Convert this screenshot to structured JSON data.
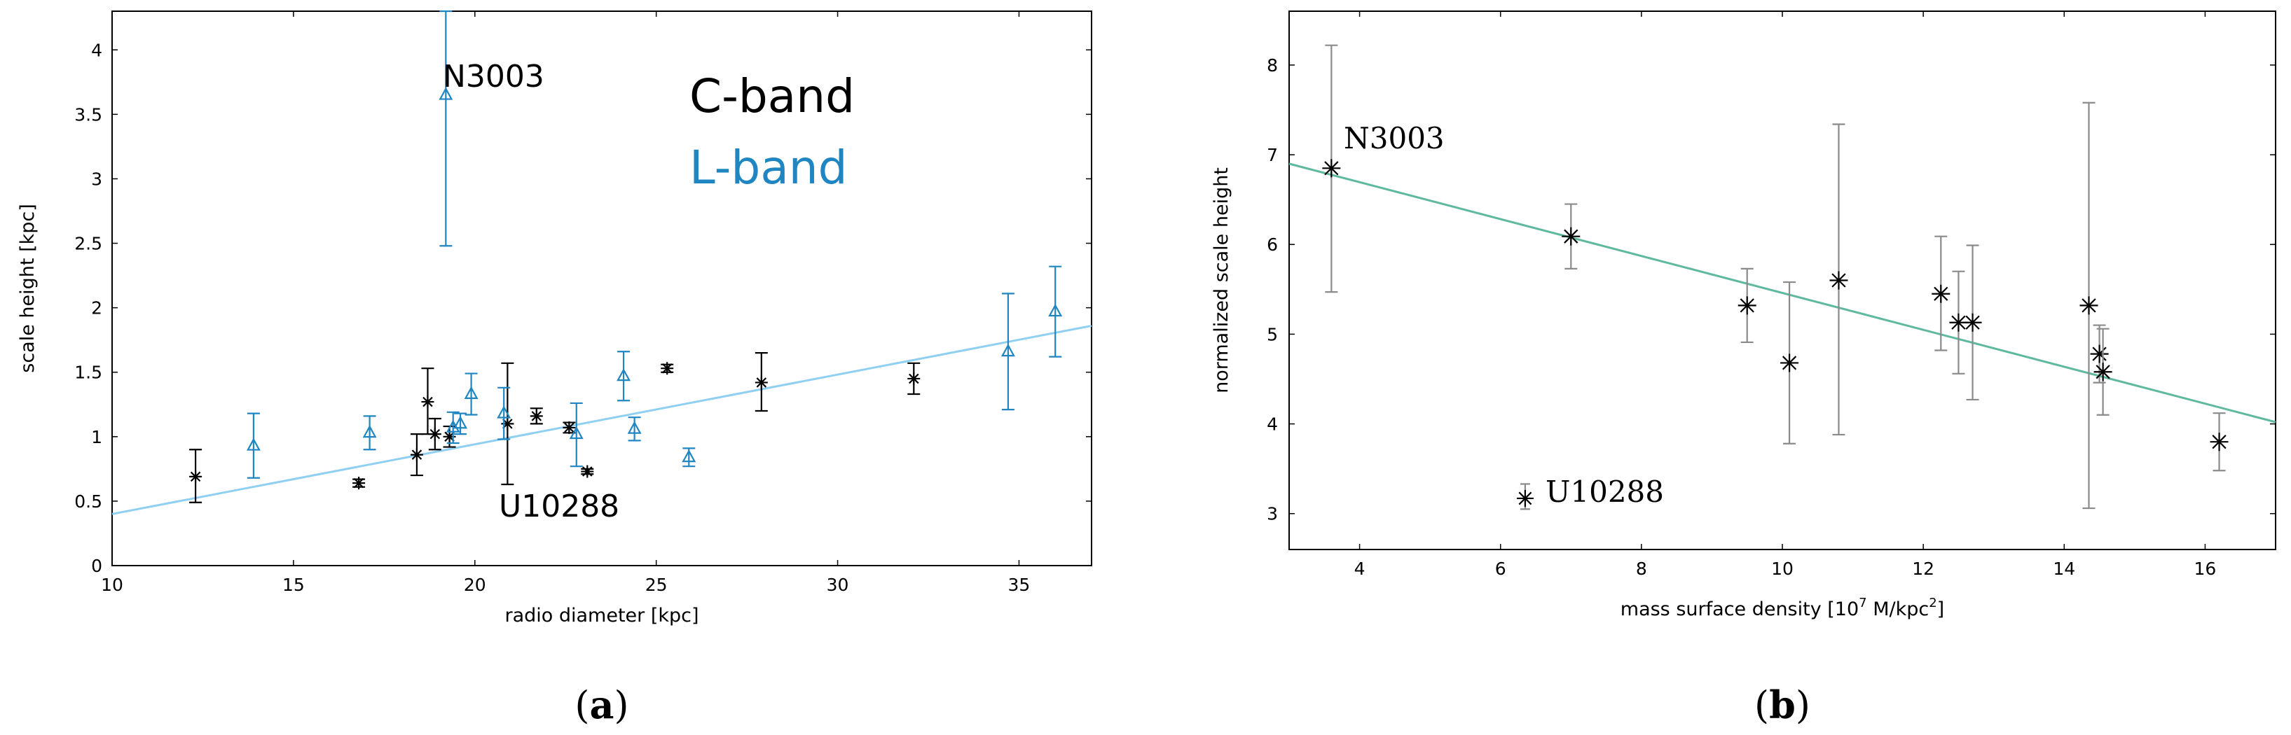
{
  "colors": {
    "c_band": "#000000",
    "l_band": "#1f86c2",
    "fit_a": "#8fd0f2",
    "fit_b": "#5fb8a0",
    "errbar_b": "#8a8a8a"
  },
  "chart_data": [
    {
      "type": "scatter",
      "panel_label": "a",
      "xlabel": "radio diameter [kpc]",
      "ylabel": "scale height [kpc]",
      "xlim": [
        10,
        37
      ],
      "ylim": [
        0,
        4.3
      ],
      "xticks": [
        "10",
        "15",
        "20",
        "25",
        "30",
        "35"
      ],
      "yticks": [
        "0",
        "0.5",
        "1",
        "1.5",
        "2",
        "2.5",
        "3",
        "3.5",
        "4"
      ],
      "legend": [
        "C-band",
        "L-band"
      ],
      "annotations": [
        "N3003",
        "U10288"
      ],
      "series": [
        {
          "name": "C-band",
          "marker": "star",
          "points": [
            {
              "x": 12.3,
              "y": 0.69,
              "lo": 0.49,
              "hi": 0.9
            },
            {
              "x": 16.8,
              "y": 0.64,
              "lo": 0.61,
              "hi": 0.67
            },
            {
              "x": 18.4,
              "y": 0.86,
              "lo": 0.7,
              "hi": 1.02
            },
            {
              "x": 18.7,
              "y": 1.27,
              "lo": 1.02,
              "hi": 1.53
            },
            {
              "x": 18.9,
              "y": 1.02,
              "lo": 0.9,
              "hi": 1.14
            },
            {
              "x": 19.3,
              "y": 1.0,
              "lo": 0.92,
              "hi": 1.08
            },
            {
              "x": 20.9,
              "y": 1.1,
              "lo": 0.63,
              "hi": 1.57
            },
            {
              "x": 21.7,
              "y": 1.16,
              "lo": 1.1,
              "hi": 1.22
            },
            {
              "x": 22.6,
              "y": 1.07,
              "lo": 1.03,
              "hi": 1.11
            },
            {
              "x": 23.1,
              "y": 0.73,
              "lo": 0.71,
              "hi": 0.75
            },
            {
              "x": 25.3,
              "y": 1.53,
              "lo": 1.5,
              "hi": 1.56
            },
            {
              "x": 27.9,
              "y": 1.42,
              "lo": 1.2,
              "hi": 1.65
            },
            {
              "x": 32.1,
              "y": 1.45,
              "lo": 1.33,
              "hi": 1.57
            }
          ]
        },
        {
          "name": "L-band",
          "marker": "triangle",
          "points": [
            {
              "x": 13.9,
              "y": 0.93,
              "lo": 0.68,
              "hi": 1.18
            },
            {
              "x": 17.1,
              "y": 1.03,
              "lo": 0.9,
              "hi": 1.16
            },
            {
              "x": 19.2,
              "y": 3.65,
              "lo": 2.48,
              "hi": 4.3
            },
            {
              "x": 19.4,
              "y": 1.07,
              "lo": 0.95,
              "hi": 1.19
            },
            {
              "x": 19.6,
              "y": 1.1,
              "lo": 1.02,
              "hi": 1.18
            },
            {
              "x": 19.9,
              "y": 1.33,
              "lo": 1.17,
              "hi": 1.49
            },
            {
              "x": 20.8,
              "y": 1.18,
              "lo": 0.98,
              "hi": 1.38
            },
            {
              "x": 22.8,
              "y": 1.02,
              "lo": 0.77,
              "hi": 1.26
            },
            {
              "x": 24.1,
              "y": 1.47,
              "lo": 1.28,
              "hi": 1.66
            },
            {
              "x": 24.4,
              "y": 1.06,
              "lo": 0.97,
              "hi": 1.15
            },
            {
              "x": 25.9,
              "y": 0.84,
              "lo": 0.77,
              "hi": 0.91
            },
            {
              "x": 34.7,
              "y": 1.66,
              "lo": 1.21,
              "hi": 2.11
            },
            {
              "x": 36.0,
              "y": 1.97,
              "lo": 1.62,
              "hi": 2.32
            }
          ]
        }
      ],
      "fit_line": {
        "x": [
          10,
          37
        ],
        "y": [
          0.4,
          1.86
        ]
      }
    },
    {
      "type": "scatter",
      "panel_label": "b",
      "xlabel_main": "mass surface density [10",
      "xlabel_exp1": "7",
      "xlabel_mid": " M/kpc",
      "xlabel_exp2": "2",
      "xlabel_end": "]",
      "ylabel": "normalized scale height",
      "xlim": [
        3,
        17
      ],
      "ylim": [
        2.6,
        8.6
      ],
      "xticks": [
        "4",
        "6",
        "8",
        "10",
        "12",
        "14",
        "16"
      ],
      "yticks": [
        "3",
        "4",
        "5",
        "6",
        "7",
        "8"
      ],
      "annotations": [
        "N3003",
        "U10288"
      ],
      "series": [
        {
          "name": "normalized scale height",
          "marker": "star",
          "points": [
            {
              "x": 3.6,
              "y": 6.85,
              "lo": 5.47,
              "hi": 8.22
            },
            {
              "x": 7.0,
              "y": 6.09,
              "lo": 5.73,
              "hi": 6.45
            },
            {
              "x": 9.5,
              "y": 5.32,
              "lo": 4.91,
              "hi": 5.73
            },
            {
              "x": 10.1,
              "y": 4.68,
              "lo": 3.78,
              "hi": 5.58
            },
            {
              "x": 10.8,
              "y": 5.6,
              "lo": 3.88,
              "hi": 7.34
            },
            {
              "x": 12.25,
              "y": 5.45,
              "lo": 4.82,
              "hi": 6.09
            },
            {
              "x": 12.5,
              "y": 5.13,
              "lo": 4.56,
              "hi": 5.7
            },
            {
              "x": 12.7,
              "y": 5.13,
              "lo": 4.27,
              "hi": 5.99
            },
            {
              "x": 14.35,
              "y": 5.32,
              "lo": 3.06,
              "hi": 7.58
            },
            {
              "x": 14.5,
              "y": 4.78,
              "lo": 4.46,
              "hi": 5.1
            },
            {
              "x": 14.55,
              "y": 4.58,
              "lo": 4.1,
              "hi": 5.06
            },
            {
              "x": 16.2,
              "y": 3.8,
              "lo": 3.48,
              "hi": 4.12
            }
          ]
        }
      ],
      "legend_marker": {
        "x": 6.35,
        "y": 3.17,
        "lo": 3.05,
        "hi": 3.33
      },
      "fit_line": {
        "x": [
          3,
          17
        ],
        "y": [
          6.9,
          4.02
        ]
      }
    }
  ]
}
